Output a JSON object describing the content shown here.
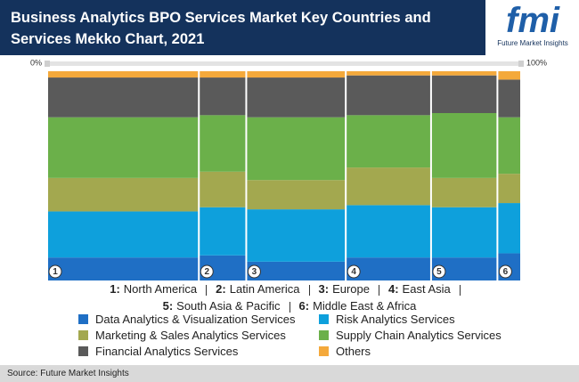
{
  "chart_data": {
    "type": "mekko",
    "title": "Business Analytics BPO Services Market Key Countries and Services Mekko Chart, 2021",
    "logo": {
      "text": "fmi",
      "tagline": "Future Market Insights"
    },
    "source": "Source: Future Market Insights",
    "column_labels": [
      "1",
      "2",
      "3",
      "4",
      "5",
      "6"
    ],
    "category_keys": [
      "1:",
      "2:",
      "3:",
      "4:",
      "5:",
      "6:"
    ],
    "categories": [
      "North America",
      "Latin America",
      "Europe",
      "East Asia",
      "South Asia & Pacific",
      "Middle East & Africa"
    ],
    "widths": [
      32,
      10,
      21,
      18,
      14,
      5
    ],
    "xlim": [
      0,
      100
    ],
    "xticks": [
      {
        "value": 0,
        "label": "0%"
      },
      {
        "value": 100,
        "label": "100%"
      }
    ],
    "ylim": [
      0,
      100
    ],
    "series": [
      {
        "name": "Data Analytics & Visualization Services",
        "color": "#1f6fc5",
        "values": [
          11,
          12,
          9,
          11,
          11,
          13
        ]
      },
      {
        "name": "Risk Analytics Services",
        "color": "#0ea0dc",
        "values": [
          22,
          23,
          25,
          25,
          24,
          24
        ]
      },
      {
        "name": "Marketing & Sales Analytics Services",
        "color": "#a3a84f",
        "values": [
          16,
          17,
          14,
          18,
          14,
          14
        ]
      },
      {
        "name": "Supply Chain Analytics Services",
        "color": "#6bb04a",
        "values": [
          29,
          27,
          30,
          25,
          31,
          27
        ]
      },
      {
        "name": "Financial Analytics Services",
        "color": "#5a5a5a",
        "values": [
          19,
          18,
          19,
          19,
          18,
          18
        ]
      },
      {
        "name": "Others",
        "color": "#f4a93b",
        "values": [
          3,
          3,
          3,
          2,
          2,
          4
        ]
      }
    ]
  }
}
